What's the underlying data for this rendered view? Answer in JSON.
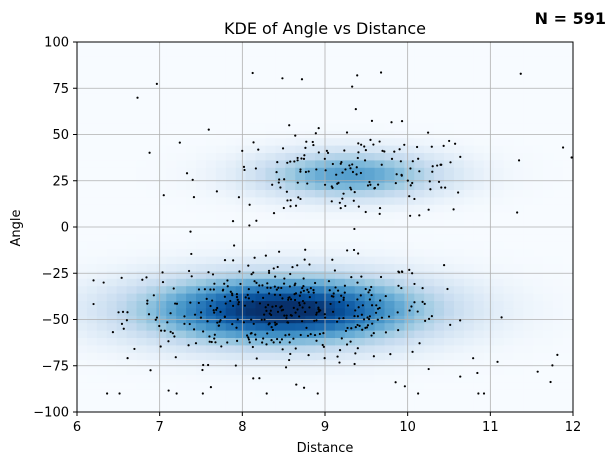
{
  "chart_data": {
    "type": "heatmap",
    "overlay": "scatter",
    "title": "KDE of Angle vs Distance",
    "annotation": "N = 591",
    "xlabel": "Distance",
    "ylabel": "Angle",
    "xlim": [
      6,
      12
    ],
    "ylim": [
      -100,
      100
    ],
    "xticks": [
      "6",
      "7",
      "8",
      "9",
      "10",
      "11",
      "12"
    ],
    "yticks": [
      "100",
      "75",
      "50",
      "25",
      "0",
      "−25",
      "−50",
      "−75",
      "−100"
    ],
    "grid": true,
    "colormap": "Blues",
    "clusters": [
      {
        "center_x": 8.5,
        "center_y": -45,
        "spread_x": 1.2,
        "spread_y": 13,
        "weight": 1.0
      },
      {
        "center_x": 9.3,
        "center_y": 28,
        "spread_x": 0.8,
        "spread_y": 9,
        "weight": 0.55
      }
    ],
    "point_count": 591,
    "colors": {
      "points": "#000000",
      "grid": "#b0b0b0"
    }
  }
}
